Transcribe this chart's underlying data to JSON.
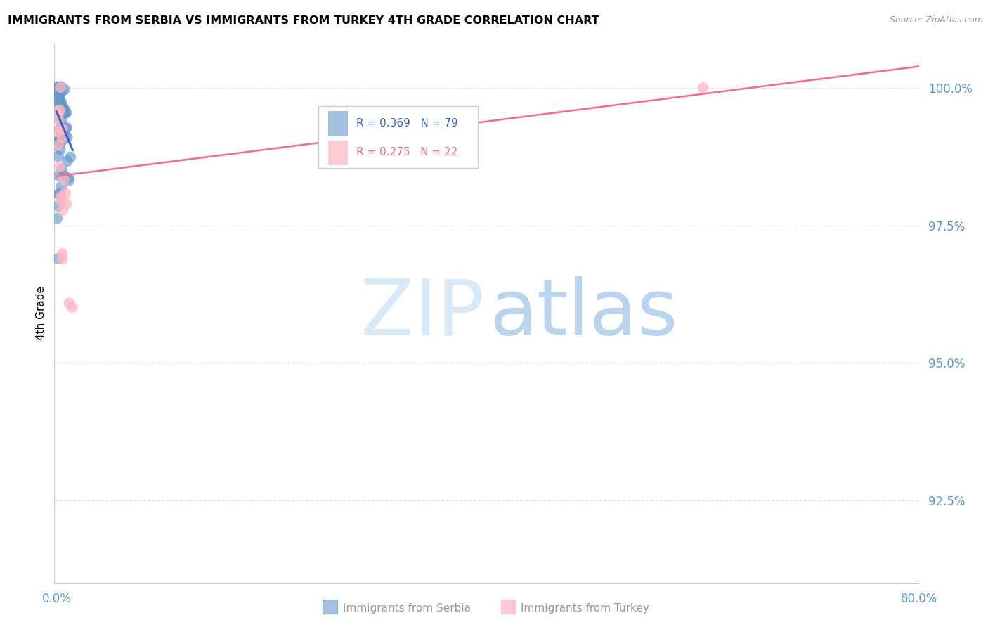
{
  "title": "IMMIGRANTS FROM SERBIA VS IMMIGRANTS FROM TURKEY 4TH GRADE CORRELATION CHART",
  "source": "Source: ZipAtlas.com",
  "ylabel": "4th Grade",
  "yticks": [
    100.0,
    97.5,
    95.0,
    92.5
  ],
  "ytick_labels": [
    "100.0%",
    "97.5%",
    "95.0%",
    "92.5%"
  ],
  "ymin": 91.0,
  "ymax": 100.8,
  "xmin": -0.002,
  "xmax": 0.8,
  "serbia_R": 0.369,
  "serbia_N": 79,
  "turkey_R": 0.275,
  "turkey_N": 22,
  "serbia_color": "#6699CC",
  "serbia_line_color": "#3366CC",
  "turkey_color": "#FFB6C1",
  "turkey_line_color": "#FF6688",
  "watermark_zip_color": "#D8EAF8",
  "watermark_atlas_color": "#B8D4EE",
  "tick_color": "#5B9BD5",
  "grid_color": "#DDDDDD",
  "bottom_label_color": "#999999"
}
